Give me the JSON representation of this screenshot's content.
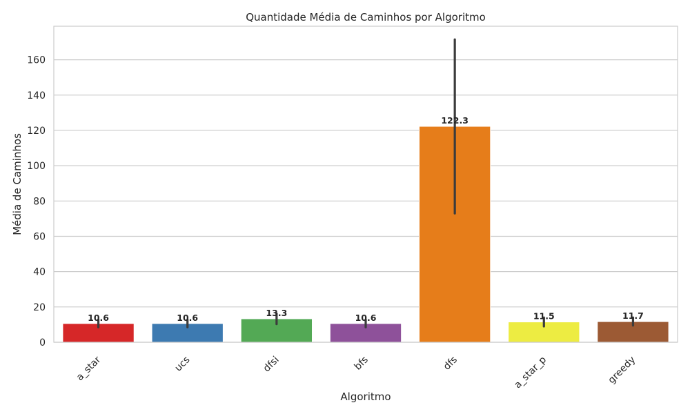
{
  "chart_data": {
    "type": "bar",
    "title": "Quantidade Média de Caminhos por Algoritmo",
    "xlabel": "Algoritmo",
    "ylabel": "Média de Caminhos",
    "categories": [
      "a_star",
      "ucs",
      "dfsi",
      "bfs",
      "dfs",
      "a_star_p",
      "greedy"
    ],
    "values": [
      10.6,
      10.6,
      13.3,
      10.6,
      122.3,
      11.5,
      11.7
    ],
    "value_labels": [
      "10.6",
      "10.6",
      "13.3",
      "10.6",
      "122.3",
      "11.5",
      "11.7"
    ],
    "error_low": [
      8.5,
      8.5,
      10.3,
      8.5,
      73,
      9,
      9.5
    ],
    "error_high": [
      12.7,
      12.7,
      16.3,
      12.7,
      171.5,
      14,
      14
    ],
    "colors": [
      "#d62728",
      "#3d7ab1",
      "#53a955",
      "#8e519a",
      "#e67d1a",
      "#edec42",
      "#9c5a34"
    ],
    "error_color": "#3c3c3c",
    "ylim": [
      0,
      179
    ],
    "yticks": [
      0,
      20,
      40,
      60,
      80,
      100,
      120,
      140,
      160
    ],
    "grid": true,
    "legend": "none"
  }
}
